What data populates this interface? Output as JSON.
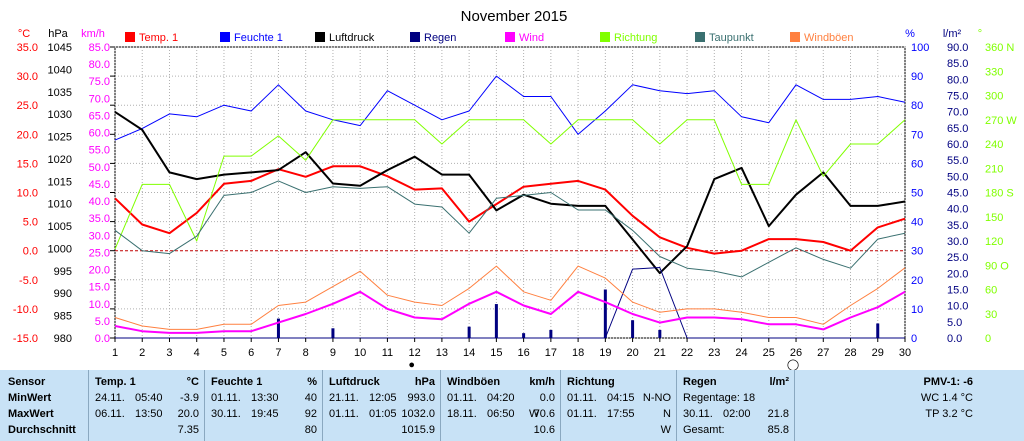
{
  "chart_data": {
    "type": "line",
    "title": "November 2015",
    "x": [
      1,
      2,
      3,
      4,
      5,
      6,
      7,
      8,
      9,
      10,
      11,
      12,
      13,
      14,
      15,
      16,
      17,
      18,
      19,
      20,
      21,
      22,
      23,
      24,
      25,
      26,
      27,
      28,
      29,
      30
    ],
    "xlim": [
      1,
      30
    ],
    "grid": true,
    "legend_position": "top",
    "axes": [
      {
        "unit": "°C",
        "range": [
          -15,
          35
        ],
        "ticks": [
          "35.0",
          "30.0",
          "25.0",
          "20.0",
          "15.0",
          "10.0",
          "5.0",
          "0.0",
          "-5.0",
          "-10.0",
          "-15.0"
        ],
        "color": "#ff0000"
      },
      {
        "unit": "hPa",
        "range": [
          980,
          1045
        ],
        "ticks": [
          "1045",
          "1040",
          "1035",
          "1030",
          "1025",
          "1020",
          "1015",
          "1010",
          "1005",
          "1000",
          "995",
          "990",
          "985",
          "980"
        ],
        "color": "#000000"
      },
      {
        "unit": "km/h",
        "range": [
          0,
          85
        ],
        "ticks": [
          "85.0",
          "80.0",
          "75.0",
          "70.0",
          "65.0",
          "60.0",
          "55.0",
          "50.0",
          "45.0",
          "40.0",
          "35.0",
          "30.0",
          "25.0",
          "20.0",
          "15.0",
          "10.0",
          "5.0",
          "0.0"
        ],
        "color": "#ff00ff"
      },
      {
        "unit": "%",
        "range": [
          0,
          100
        ],
        "ticks": [
          "100",
          "90",
          "80",
          "70",
          "60",
          "50",
          "40",
          "30",
          "20",
          "10",
          "0"
        ],
        "color": "#0000ff"
      },
      {
        "unit": "l/m²",
        "range": [
          0,
          90
        ],
        "ticks": [
          "90.0",
          "85.0",
          "80.0",
          "75.0",
          "70.0",
          "65.0",
          "60.0",
          "55.0",
          "50.0",
          "45.0",
          "40.0",
          "35.0",
          "30.0",
          "25.0",
          "20.0",
          "15.0",
          "10.0",
          "5.0",
          "0.0"
        ],
        "color": "#000080"
      },
      {
        "unit": "°",
        "range": [
          0,
          360
        ],
        "ticks": [
          "360 N",
          "330",
          "300",
          "270 W",
          "240",
          "210",
          "180 S",
          "150",
          "120",
          "90 O",
          "60",
          "30",
          "0"
        ],
        "color": "#80ff00"
      }
    ],
    "series": [
      {
        "name": "Temp. 1",
        "axis": 0,
        "color": "#ff0000",
        "width": 2,
        "values": [
          9.0,
          4.5,
          3.0,
          6.5,
          11.5,
          12.0,
          14.0,
          12.7,
          14.5,
          14.5,
          12.8,
          10.5,
          10.7,
          5.0,
          8.0,
          11.0,
          11.5,
          12.0,
          10.5,
          6.0,
          2.3,
          0.5,
          -0.5,
          0.0,
          2.0,
          2.0,
          1.5,
          0.0,
          4.0,
          5.5
        ]
      },
      {
        "name": "Feuchte 1",
        "axis": 3,
        "color": "#0000ff",
        "width": 1,
        "values": [
          68,
          72,
          77,
          76,
          80,
          78,
          87,
          78,
          75,
          73,
          85,
          80,
          75,
          78,
          90,
          83,
          83,
          70,
          78,
          87,
          85,
          84,
          85,
          76,
          74,
          87,
          82,
          82,
          83,
          81
        ]
      },
      {
        "name": "Luftdruck",
        "axis": 1,
        "color": "#000000",
        "width": 2,
        "values": [
          1030.5,
          1026.5,
          1017.0,
          1015.5,
          1016.5,
          1017.0,
          1017.5,
          1021.5,
          1014.5,
          1014.0,
          1017.5,
          1020.5,
          1016.5,
          1016.5,
          1008.5,
          1012.0,
          1010.0,
          1009.5,
          1009.5,
          1002.0,
          994.5,
          1000.5,
          1015.5,
          1018.0,
          1005.0,
          1012.0,
          1017.0,
          1009.5,
          1009.5,
          1010.5
        ]
      },
      {
        "name": "Regen",
        "axis": 4,
        "color": "#000080",
        "width": 1,
        "values": [
          0.0,
          0.0,
          0.0,
          0.0,
          0.0,
          0.0,
          0.0,
          0.0,
          0.0,
          0.0,
          0.0,
          0.0,
          0.0,
          0.0,
          0.0,
          0.0,
          0.0,
          0.0,
          0.0,
          21.3,
          21.8,
          0.0,
          0.0,
          0.0,
          0.0,
          0.0,
          0.0,
          0.0,
          0.0,
          0.0
        ]
      },
      {
        "name": "Wind",
        "axis": 2,
        "color": "#ff00ff",
        "width": 2,
        "values": [
          3.5,
          2.0,
          1.5,
          1.5,
          2.0,
          2.0,
          4.5,
          7.0,
          10.0,
          13.5,
          8.5,
          6.0,
          5.5,
          10.0,
          13.5,
          9.5,
          7.0,
          13.5,
          10.5,
          7.0,
          4.5,
          6.0,
          6.0,
          5.5,
          4.0,
          4.0,
          2.5,
          6.0,
          9.0,
          13.5
        ]
      },
      {
        "name": "Richtung",
        "axis": 5,
        "color": "#80ff00",
        "width": 1,
        "values": [
          110,
          190,
          190,
          120,
          225,
          225,
          250,
          220,
          270,
          270,
          270,
          270,
          240,
          270,
          270,
          270,
          240,
          270,
          270,
          270,
          240,
          270,
          270,
          190,
          190,
          270,
          200,
          240,
          240,
          270
        ]
      },
      {
        "name": "Taupunkt",
        "axis": 0,
        "color": "#3a7070",
        "width": 1,
        "values": [
          3.5,
          0.0,
          -0.5,
          2.5,
          9.5,
          10.0,
          12.0,
          10.0,
          11.0,
          10.7,
          11.0,
          8.0,
          7.5,
          3.0,
          9.0,
          9.5,
          10.0,
          7.0,
          7.0,
          3.5,
          -1.0,
          -3.0,
          -3.5,
          -4.5,
          -2.0,
          0.5,
          -1.5,
          -3.0,
          2.0,
          3.0
        ]
      },
      {
        "name": "Windböen",
        "axis": 2,
        "color": "#ff8040",
        "width": 1,
        "values": [
          6.0,
          3.5,
          2.5,
          2.5,
          4.0,
          4.0,
          9.5,
          10.5,
          15.0,
          19.5,
          12.5,
          10.5,
          9.5,
          14.5,
          21.0,
          13.5,
          11.0,
          21.0,
          17.5,
          10.5,
          7.5,
          8.5,
          8.5,
          7.5,
          6.0,
          6.0,
          4.0,
          9.5,
          14.5,
          20.5
        ]
      }
    ],
    "rain_bars": {
      "axis": 4,
      "color": "#000080",
      "values": [
        0,
        0,
        0,
        0,
        0,
        0,
        6.0,
        0,
        3.0,
        0,
        0,
        0,
        0,
        3.5,
        10.5,
        1.5,
        2.5,
        0,
        15.0,
        5.5,
        2.5,
        0,
        0,
        0,
        0,
        0,
        0,
        0,
        4.5,
        0
      ]
    },
    "x_markers": [
      {
        "x": 12,
        "symbol": "●"
      },
      {
        "x": 26,
        "symbol": "◯"
      }
    ]
  },
  "stats": {
    "sensor": {
      "header": "Sensor",
      "rows": [
        "MinWert",
        "MaxWert",
        "Durchschnitt"
      ]
    },
    "temp": {
      "title": "Temp. 1",
      "unit": "°C",
      "rows": [
        [
          "24.11.",
          "05:40",
          "-3.9"
        ],
        [
          "06.11.",
          "13:50",
          "20.0"
        ],
        [
          "",
          "",
          "7.35"
        ]
      ]
    },
    "humidity": {
      "title": "Feuchte 1",
      "unit": "%",
      "rows": [
        [
          "01.11.",
          "13:30",
          "40"
        ],
        [
          "30.11.",
          "19:45",
          "92"
        ],
        [
          "",
          "",
          "80"
        ]
      ]
    },
    "pressure": {
      "title": "Luftdruck",
      "unit": "hPa",
      "rows": [
        [
          "21.11.",
          "12:05",
          "993.0"
        ],
        [
          "01.11.",
          "01:05",
          "1032.0"
        ],
        [
          "",
          "",
          "1015.9"
        ]
      ]
    },
    "gusts": {
      "title": "Windböen",
      "unit": "km/h",
      "rows": [
        [
          "01.11.",
          "04:20",
          "",
          "0.0"
        ],
        [
          "18.11.",
          "06:50",
          "W",
          "70.6"
        ],
        [
          "",
          "",
          "",
          "10.6"
        ]
      ]
    },
    "direction": {
      "title": "Richtung",
      "rows": [
        [
          "01.11.",
          "04:15",
          "N-NO"
        ],
        [
          "01.11.",
          "17:55",
          "N"
        ],
        [
          "",
          "",
          "W"
        ]
      ]
    },
    "rain": {
      "title": "Regen",
      "unit": "l/m²",
      "rows": [
        [
          "Regentage: 18",
          "",
          ""
        ],
        [
          "30.11.",
          "02:00",
          "21.8"
        ],
        [
          "Gesamt:",
          "",
          "85.8"
        ]
      ]
    },
    "pmv": {
      "title": "PMV-1: -6",
      "rows": [
        "WC 1.4 °C",
        "TP 3.2 °C"
      ]
    }
  }
}
